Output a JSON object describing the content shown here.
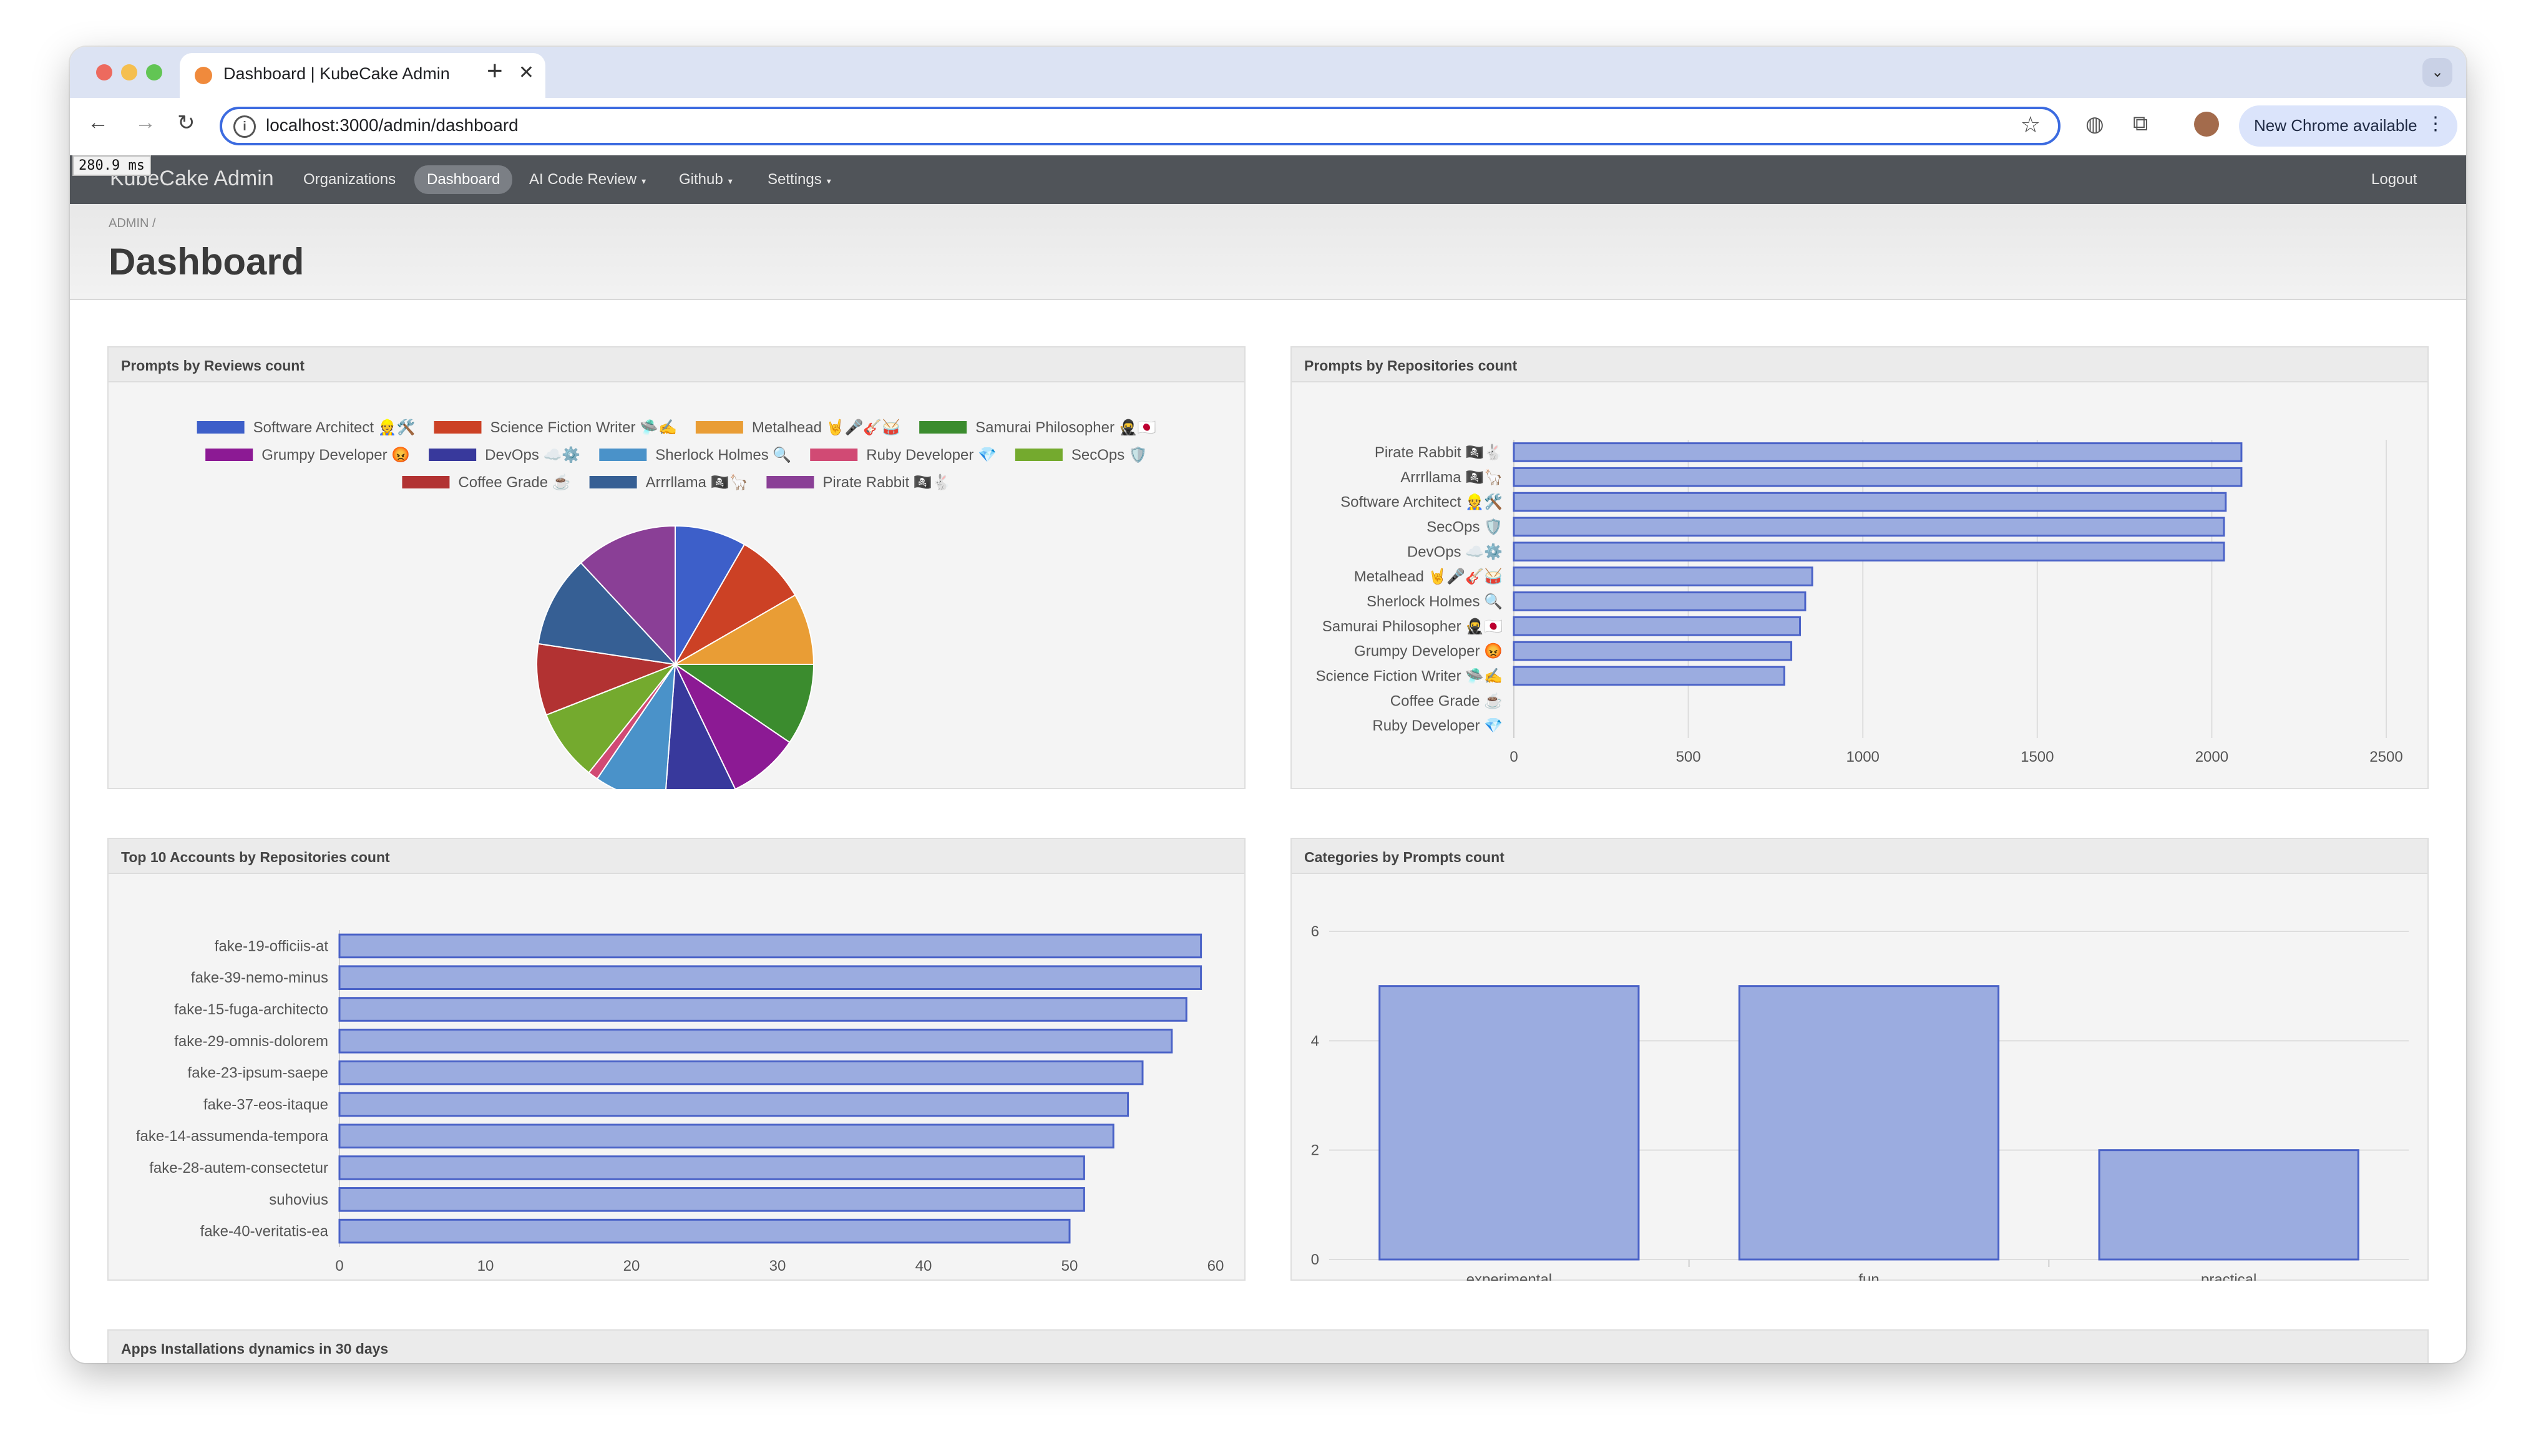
{
  "browser": {
    "tab_title": "Dashboard | KubeCake Admin",
    "url": "localhost:3000/admin/dashboard",
    "update_label": "New Chrome available"
  },
  "app": {
    "brand": "KubeCake Admin",
    "timer": "280.9 ms",
    "nav": [
      {
        "label": "Organizations",
        "dropdown": false,
        "active": false
      },
      {
        "label": "Dashboard",
        "dropdown": false,
        "active": true
      },
      {
        "label": "AI Code Review",
        "dropdown": true,
        "active": false
      },
      {
        "label": "Github",
        "dropdown": true,
        "active": false
      },
      {
        "label": "Settings",
        "dropdown": true,
        "active": false
      }
    ],
    "logout": "Logout"
  },
  "page": {
    "breadcrumb": "ADMIN /",
    "title": "Dashboard"
  },
  "panels": {
    "reviews": "Prompts by Reviews count",
    "repos": "Prompts by Repositories count",
    "accounts": "Top 10 Accounts by Repositories count",
    "categories": "Categories by Prompts count",
    "installs": "Apps Installations dynamics in 30 days"
  },
  "chart_data": [
    {
      "type": "pie",
      "title": "Prompts by Reviews count",
      "legend_position": "top",
      "categories": [
        "Software Architect 👷🛠️",
        "Science Fiction Writer 🛸✍️",
        "Metalhead 🤘🎤🎸🥁",
        "Samurai Philosopher 🥷🇯🇵",
        "Grumpy Developer 😡",
        "DevOps ☁️⚙️",
        "Sherlock Holmes 🔍",
        "Ruby Developer 💎",
        "SecOps 🛡️",
        "Coffee Grade ☕",
        "Arrrllama 🏴‍☠️🦙",
        "Pirate Rabbit 🏴‍☠️🐇"
      ],
      "values": [
        7,
        7,
        7,
        8,
        7,
        7,
        7,
        1,
        7,
        7,
        9,
        10
      ],
      "colors": [
        "#3d5fc9",
        "#cc4125",
        "#e99d35",
        "#3b8c2e",
        "#8c1a94",
        "#38399c",
        "#4a92c9",
        "#d14a74",
        "#74aa2e",
        "#b23232",
        "#365f94",
        "#8a3f96"
      ]
    },
    {
      "type": "bar",
      "orientation": "horizontal",
      "title": "Prompts by Repositories count",
      "categories": [
        "Pirate Rabbit 🏴‍☠️🐇",
        "Arrrllama 🏴‍☠️🦙",
        "Software Architect 👷🛠️",
        "SecOps 🛡️",
        "DevOps ☁️⚙️",
        "Metalhead 🤘🎤🎸🥁",
        "Sherlock Holmes 🔍",
        "Samurai Philosopher 🥷🇯🇵",
        "Grumpy Developer 😡",
        "Science Fiction Writer 🛸✍️",
        "Coffee Grade ☕",
        "Ruby Developer 💎"
      ],
      "values": [
        2085,
        2085,
        2040,
        2035,
        2035,
        855,
        835,
        820,
        795,
        775,
        0,
        0
      ],
      "xlim": [
        0,
        2500
      ],
      "xticks": [
        "0",
        "500",
        "1000",
        "1500",
        "2000",
        "2500"
      ],
      "grid": true,
      "color": "#9bace0"
    },
    {
      "type": "bar",
      "orientation": "horizontal",
      "title": "Top 10 Accounts by Repositories count",
      "categories": [
        "fake-19-officiis-at",
        "fake-39-nemo-minus",
        "fake-15-fuga-architecto",
        "fake-29-omnis-dolorem",
        "fake-23-ipsum-saepe",
        "fake-37-eos-itaque",
        "fake-14-assumenda-tempora",
        "fake-28-autem-consectetur",
        "suhovius",
        "fake-40-veritatis-ea"
      ],
      "values": [
        59,
        59,
        58,
        57,
        55,
        54,
        53,
        51,
        51,
        50
      ],
      "xlim": [
        0,
        60
      ],
      "xticks": [
        "0",
        "10",
        "20",
        "30",
        "40",
        "50",
        "60"
      ],
      "grid": false,
      "color": "#9bace0"
    },
    {
      "type": "bar",
      "orientation": "vertical",
      "title": "Categories by Prompts count",
      "categories": [
        "experimental",
        "fun",
        "practical"
      ],
      "values": [
        5,
        5,
        2
      ],
      "ylim": [
        0,
        6
      ],
      "yticks": [
        "0",
        "2",
        "4",
        "6"
      ],
      "grid": true,
      "color": "#9bace0"
    }
  ]
}
